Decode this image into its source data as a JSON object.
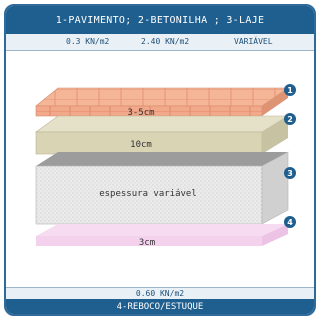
{
  "header": {
    "title": "1-PAVIMENTO; 2-BETONILHA ; 3-LAJE"
  },
  "loads": {
    "pavimento": "0.3 KN/m2",
    "betonilha": "2.40 KN/m2",
    "laje": "VARIÁVEL",
    "reboco": "0.60 KN/m2"
  },
  "footer": {
    "title": "4-REBOCO/ESTUQUE"
  },
  "layers": [
    {
      "number": "1",
      "label": "3-5cm",
      "color": "#f2a88a"
    },
    {
      "number": "2",
      "label": "10cm",
      "color": "#d9d6b8"
    },
    {
      "number": "3",
      "label": "espessura variável",
      "color": "#e6e6e6"
    },
    {
      "number": "4",
      "label": "3cm",
      "color": "#f6d6f0"
    }
  ],
  "colors": {
    "header": "#1f5f8f",
    "badge": "#1f5f8f"
  }
}
